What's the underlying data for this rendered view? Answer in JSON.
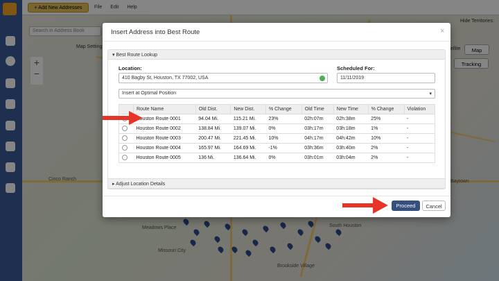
{
  "toolbar": {
    "add_button": "Add New Addresses",
    "menu": [
      "File",
      "Edit",
      "Help"
    ],
    "hide_territories": "Hide Territories:"
  },
  "search_placeholder": "Search in Address Book",
  "map": {
    "map_settings": "Map Setting",
    "satellite": "tellite",
    "map": "Map",
    "tracking": "Tracking",
    "labels": [
      "Cinco Ranch",
      "Meadows Place",
      "Missouri City",
      "Brookside Village",
      "Baytown",
      "South Houston"
    ]
  },
  "dialog": {
    "title": "Insert Address into Best Route",
    "close": "×",
    "section": "Best Route Lookup",
    "location_label": "Location:",
    "location_value": "410 Bagby St, Houston, TX 77002, USA",
    "scheduled_label": "Scheduled For:",
    "scheduled_value": "11/11/2019",
    "insert_option": "Insert at Optimal Position",
    "table": {
      "headers": [
        "Route Name",
        "Old Dist.",
        "New Dist.",
        "% Change",
        "Old Time",
        "New Time",
        "% Change",
        "Violation"
      ],
      "rows": [
        [
          "Houston Route 0001",
          "94.04 Mi.",
          "115.21 Mi.",
          "23%",
          "02h:07m",
          "02h:38m",
          "25%",
          "-"
        ],
        [
          "Houston Route 0002",
          "138.84 Mi.",
          "139.07 Mi.",
          "0%",
          "03h:17m",
          "03h:18m",
          "1%",
          "-"
        ],
        [
          "Houston Route 0003",
          "200.47 Mi.",
          "221.45 Mi.",
          "10%",
          "04h:17m",
          "04h:42m",
          "10%",
          "-"
        ],
        [
          "Houston Route 0004",
          "165.97 Mi.",
          "164.69 Mi.",
          "-1%",
          "03h:36m",
          "03h:40m",
          "2%",
          "-"
        ],
        [
          "Houston Route 0005",
          "136 Mi.",
          "136.64 Mi.",
          "0%",
          "03h:01m",
          "03h:04m",
          "2%",
          "-"
        ]
      ]
    },
    "adjust": "Adjust Location Details",
    "proceed": "Proceed",
    "cancel": "Cancel"
  }
}
